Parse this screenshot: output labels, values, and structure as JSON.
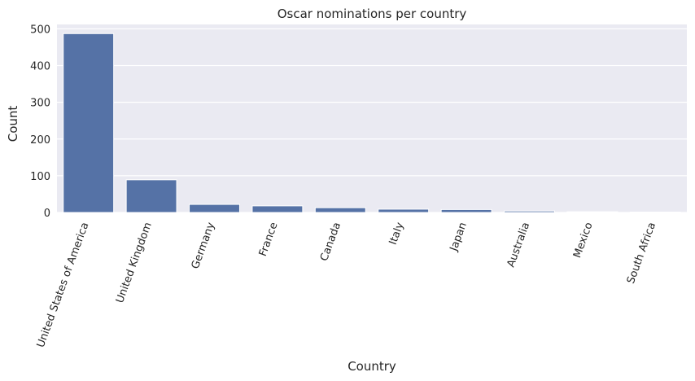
{
  "chart_data": {
    "type": "bar",
    "title": "Oscar nominations per country",
    "xlabel": "Country",
    "ylabel": "Count",
    "categories": [
      "United States of America",
      "United Kingdom",
      "Germany",
      "France",
      "Canada",
      "Italy",
      "Japan",
      "Australia",
      "Mexico",
      "South Africa"
    ],
    "values": [
      487,
      89,
      22,
      18,
      13,
      9,
      8,
      4,
      2,
      1
    ],
    "ylim": [
      0,
      512
    ],
    "yticks": [
      0,
      100,
      200,
      300,
      400,
      500
    ],
    "grid": true,
    "colors": {
      "bar": "#5572a6",
      "plot_background": "#eaeaf2",
      "grid": "#ffffff"
    }
  }
}
